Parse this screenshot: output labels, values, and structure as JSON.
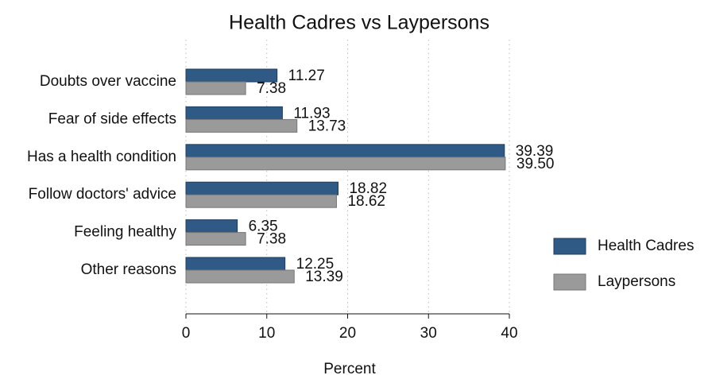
{
  "chart_data": {
    "type": "hbar",
    "title": "Health Cadres vs Laypersons",
    "xlabel": "Percent",
    "categories": [
      "Doubts over vaccine",
      "Fear of side effects",
      "Has a health condition",
      "Follow doctors' advice",
      "Feeling healthy",
      "Other reasons"
    ],
    "series": [
      {
        "name": "Health Cadres",
        "color": "#2e5a85",
        "values": [
          11.27,
          11.93,
          39.39,
          18.82,
          6.35,
          12.25
        ],
        "value_labels": [
          "11.27",
          "11.93",
          "39.39",
          "18.82",
          "6.35",
          "12.25"
        ]
      },
      {
        "name": "Laypersons",
        "color": "#9a9a9a",
        "values": [
          7.38,
          13.73,
          39.5,
          18.62,
          7.38,
          13.39
        ],
        "value_labels": [
          "7.38",
          "13.73",
          "39.50",
          "18.62",
          "7.38",
          "13.39"
        ]
      }
    ],
    "xlim": [
      0,
      40
    ],
    "xticks": [
      0,
      10,
      20,
      30,
      40
    ],
    "grid": true,
    "legend": "right"
  }
}
